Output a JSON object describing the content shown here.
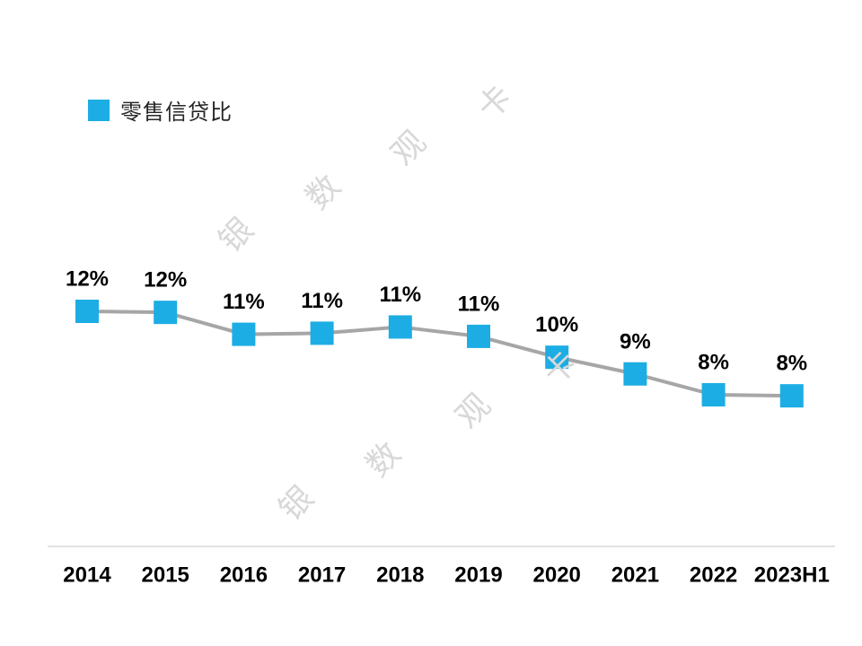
{
  "legend": {
    "label": "零售信贷比",
    "swatch_color": "#1CADE4"
  },
  "watermark": {
    "text": "银数观卡",
    "color": "#D8D8D8"
  },
  "chart_data": {
    "type": "line",
    "title": "",
    "series_name": "零售信贷比",
    "categories": [
      "2014",
      "2015",
      "2016",
      "2017",
      "2018",
      "2019",
      "2020",
      "2021",
      "2022",
      "2023H1"
    ],
    "values": [
      12,
      12,
      11,
      11,
      11,
      11,
      10,
      9,
      8,
      8
    ],
    "labels": [
      "12%",
      "12%",
      "11%",
      "11%",
      "11%",
      "11%",
      "10%",
      "9%",
      "8%",
      "8%"
    ],
    "values_estimated": [
      12.0,
      11.95,
      10.9,
      10.95,
      11.25,
      10.8,
      9.8,
      9.0,
      8.0,
      7.95
    ],
    "y_unit": "%",
    "ylim": [
      7,
      13
    ],
    "grid": false,
    "legend_position": "top-left",
    "marker": "square",
    "marker_color": "#1CADE4",
    "line_color": "#A6A6A6",
    "data_label_color": "#000000",
    "tick_label_color": "#000000",
    "axis_line_color": "#D9D9D9",
    "data_labels_visible": true
  }
}
